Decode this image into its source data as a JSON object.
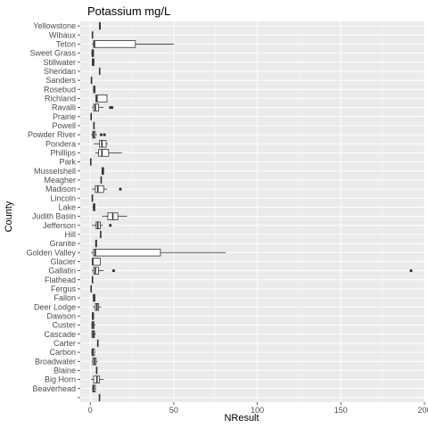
{
  "chart_data": {
    "type": "boxplot",
    "orientation": "horizontal",
    "title": "Potassium mg/L",
    "xlabel": "NResult",
    "ylabel": "County",
    "xlim": [
      -6,
      200
    ],
    "xticks": [
      0,
      50,
      100,
      150,
      200
    ],
    "grid": true,
    "panel_color": "#ebebeb",
    "categories": [
      "Yellowstone",
      "Wibaux",
      "Teton",
      "Sweet Grass",
      "Stillwater",
      "Sheridan",
      "Sanders",
      "Rosebud",
      "Richland",
      "Ravalli",
      "Prairie",
      "Powell",
      "Powder River",
      "Pondera",
      "Phillips",
      "Park",
      "Musselshell",
      "Meagher",
      "Madison",
      "Lincoln",
      "Lake",
      "Judith Basin",
      "Jefferson",
      "Hill",
      "Granite",
      "Golden Valley",
      "Glacier",
      "Gallatin",
      "Flathead",
      "Fergus",
      "Fallon",
      "Deer Lodge",
      "Dawson",
      "Custer",
      "Cascade",
      "Carter",
      "Carbon",
      "Broadwater",
      "Blaine",
      "Big Horn",
      "Beaverhead",
      ""
    ],
    "boxes": [
      {
        "category": "Yellowstone",
        "min": 5.2,
        "q1": 5.5,
        "median": 5.7,
        "q3": 6.0,
        "max": 6.3,
        "outliers": []
      },
      {
        "category": "Wibaux",
        "min": 1.3,
        "q1": 1.3,
        "median": 1.3,
        "q3": 1.3,
        "max": 1.3,
        "outliers": []
      },
      {
        "category": "Teton",
        "min": 1.0,
        "q1": 2.0,
        "median": 2.5,
        "q3": 27.0,
        "max": 50.0,
        "outliers": []
      },
      {
        "category": "Sweet Grass",
        "min": 0.6,
        "q1": 1.0,
        "median": 1.5,
        "q3": 2.0,
        "max": 2.3,
        "outliers": []
      },
      {
        "category": "Stillwater",
        "min": 1.0,
        "q1": 1.2,
        "median": 1.6,
        "q3": 2.2,
        "max": 2.5,
        "outliers": []
      },
      {
        "category": "Sheridan",
        "min": 5.6,
        "q1": 5.6,
        "median": 5.6,
        "q3": 5.6,
        "max": 5.6,
        "outliers": []
      },
      {
        "category": "Sanders",
        "min": 0.7,
        "q1": 0.7,
        "median": 0.7,
        "q3": 0.7,
        "max": 0.7,
        "outliers": []
      },
      {
        "category": "Rosebud",
        "min": 1.5,
        "q1": 2.0,
        "median": 2.5,
        "q3": 2.8,
        "max": 3.0,
        "outliers": []
      },
      {
        "category": "Richland",
        "min": 3.0,
        "q1": 3.3,
        "median": 4.0,
        "q3": 10.0,
        "max": 10.0,
        "outliers": []
      },
      {
        "category": "Ravalli",
        "min": 1.0,
        "q1": 2.0,
        "median": 3.0,
        "q3": 5.0,
        "max": 8.0,
        "outliers": [
          12.0,
          13.0
        ]
      },
      {
        "category": "Prairie",
        "min": 0.5,
        "q1": 0.5,
        "median": 0.5,
        "q3": 0.5,
        "max": 0.5,
        "outliers": []
      },
      {
        "category": "Powell",
        "min": 2.2,
        "q1": 2.2,
        "median": 2.2,
        "q3": 2.2,
        "max": 2.2,
        "outliers": []
      },
      {
        "category": "Powder River",
        "min": 0.5,
        "q1": 1.5,
        "median": 2.0,
        "q3": 3.0,
        "max": 4.0,
        "outliers": [
          6.5,
          8.5
        ]
      },
      {
        "category": "Pondera",
        "min": 2.0,
        "q1": 5.5,
        "median": 7.0,
        "q3": 9.5,
        "max": 10.5,
        "outliers": []
      },
      {
        "category": "Phillips",
        "min": 3.0,
        "q1": 5.0,
        "median": 7.0,
        "q3": 11.0,
        "max": 19.0,
        "outliers": []
      },
      {
        "category": "Park",
        "min": 0.3,
        "q1": 0.3,
        "median": 0.3,
        "q3": 0.3,
        "max": 0.3,
        "outliers": []
      },
      {
        "category": "Musselshell",
        "min": 6.8,
        "q1": 7.0,
        "median": 7.5,
        "q3": 8.0,
        "max": 8.2,
        "outliers": []
      },
      {
        "category": "Meagher",
        "min": 6.5,
        "q1": 6.5,
        "median": 6.5,
        "q3": 6.5,
        "max": 6.5,
        "outliers": []
      },
      {
        "category": "Madison",
        "min": 1.0,
        "q1": 3.0,
        "median": 4.5,
        "q3": 8.0,
        "max": 10.0,
        "outliers": [
          18.0
        ]
      },
      {
        "category": "Lincoln",
        "min": 1.2,
        "q1": 1.2,
        "median": 1.2,
        "q3": 1.2,
        "max": 1.2,
        "outliers": []
      },
      {
        "category": "Lake",
        "min": 1.3,
        "q1": 1.8,
        "median": 2.2,
        "q3": 2.8,
        "max": 3.0,
        "outliers": []
      },
      {
        "category": "Judith Basin",
        "min": 7.0,
        "q1": 10.5,
        "median": 13.5,
        "q3": 16.5,
        "max": 22.0,
        "outliers": []
      },
      {
        "category": "Jefferson",
        "min": 1.0,
        "q1": 3.5,
        "median": 4.5,
        "q3": 6.0,
        "max": 7.5,
        "outliers": [
          12.0
        ]
      },
      {
        "category": "Hill",
        "min": 6.2,
        "q1": 6.2,
        "median": 6.2,
        "q3": 6.2,
        "max": 6.2,
        "outliers": []
      },
      {
        "category": "Granite",
        "min": 3.0,
        "q1": 3.2,
        "median": 3.5,
        "q3": 3.8,
        "max": 4.0,
        "outliers": []
      },
      {
        "category": "Golden Valley",
        "min": 0.5,
        "q1": 2.0,
        "median": 3.0,
        "q3": 42.0,
        "max": 81.0,
        "outliers": []
      },
      {
        "category": "Glacier",
        "min": 1.0,
        "q1": 1.2,
        "median": 1.5,
        "q3": 6.0,
        "max": 6.0,
        "outliers": []
      },
      {
        "category": "Gallatin",
        "min": 1.0,
        "q1": 2.0,
        "median": 3.0,
        "q3": 5.0,
        "max": 8.0,
        "outliers": [
          14.0,
          192.0
        ]
      },
      {
        "category": "Flathead",
        "min": 1.3,
        "q1": 1.3,
        "median": 1.3,
        "q3": 1.3,
        "max": 1.3,
        "outliers": []
      },
      {
        "category": "Fergus",
        "min": 0.5,
        "q1": 0.5,
        "median": 0.5,
        "q3": 0.5,
        "max": 0.5,
        "outliers": []
      },
      {
        "category": "Fallon",
        "min": 1.5,
        "q1": 1.8,
        "median": 2.2,
        "q3": 2.8,
        "max": 3.2,
        "outliers": []
      },
      {
        "category": "Deer Lodge",
        "min": 1.5,
        "q1": 3.0,
        "median": 4.0,
        "q3": 5.0,
        "max": 6.5,
        "outliers": []
      },
      {
        "category": "Dawson",
        "min": 1.0,
        "q1": 1.2,
        "median": 1.5,
        "q3": 2.0,
        "max": 2.2,
        "outliers": []
      },
      {
        "category": "Custer",
        "min": 0.5,
        "q1": 1.0,
        "median": 1.5,
        "q3": 2.3,
        "max": 3.2,
        "outliers": []
      },
      {
        "category": "Cascade",
        "min": 0.5,
        "q1": 1.0,
        "median": 1.8,
        "q3": 2.5,
        "max": 3.5,
        "outliers": []
      },
      {
        "category": "Carter",
        "min": 4.5,
        "q1": 4.5,
        "median": 4.5,
        "q3": 4.5,
        "max": 4.5,
        "outliers": []
      },
      {
        "category": "Carbon",
        "min": 0.5,
        "q1": 1.0,
        "median": 1.5,
        "q3": 2.5,
        "max": 3.0,
        "outliers": []
      },
      {
        "category": "Broadwater",
        "min": 0.8,
        "q1": 1.5,
        "median": 2.5,
        "q3": 3.5,
        "max": 4.5,
        "outliers": []
      },
      {
        "category": "Blaine",
        "min": 3.8,
        "q1": 3.8,
        "median": 3.8,
        "q3": 3.8,
        "max": 3.8,
        "outliers": []
      },
      {
        "category": "Big Horn",
        "min": 0.5,
        "q1": 2.0,
        "median": 4.0,
        "q3": 5.5,
        "max": 8.0,
        "outliers": []
      },
      {
        "category": "Beaverhead",
        "min": 1.0,
        "q1": 1.5,
        "median": 2.0,
        "q3": 3.0,
        "max": 3.5,
        "outliers": []
      },
      {
        "category": "",
        "min": 5.5,
        "q1": 5.5,
        "median": 5.5,
        "q3": 5.5,
        "max": 5.5,
        "outliers": []
      }
    ]
  }
}
